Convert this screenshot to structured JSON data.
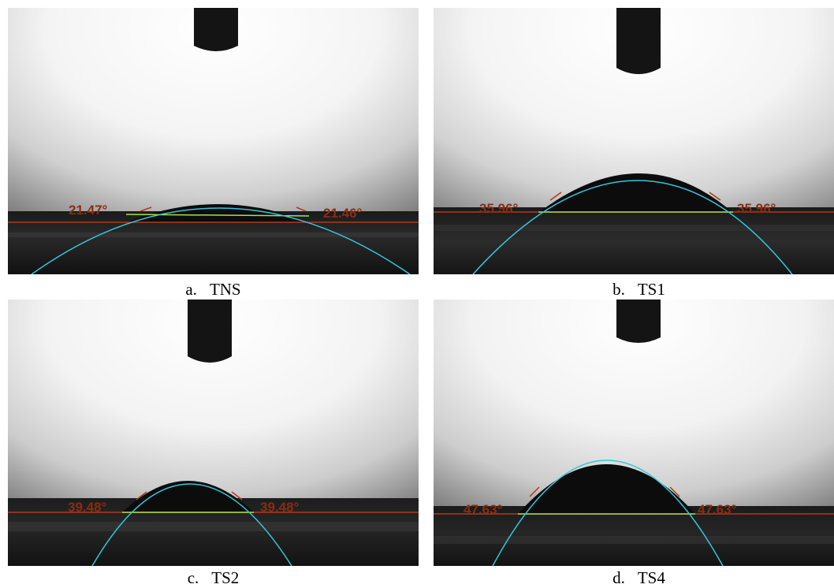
{
  "colors": {
    "baseline": "#b13a1a",
    "contact_chord": "#a8e04a",
    "drop_profile": "#35c6dc",
    "angle_label": "#8b2c12"
  },
  "panels": [
    {
      "id": "a",
      "letter": "a.",
      "name": "TNS",
      "left_angle": "21.47°",
      "right_angle": "21.46°"
    },
    {
      "id": "b",
      "letter": "b.",
      "name": "TS1",
      "left_angle": "35.96°",
      "right_angle": "35.96°"
    },
    {
      "id": "c",
      "letter": "c.",
      "name": "TS2",
      "left_angle": "39.48°",
      "right_angle": "39.48°"
    },
    {
      "id": "d",
      "letter": "d.",
      "name": "TS4",
      "left_angle": "47.63°",
      "right_angle": "47.63°"
    }
  ]
}
